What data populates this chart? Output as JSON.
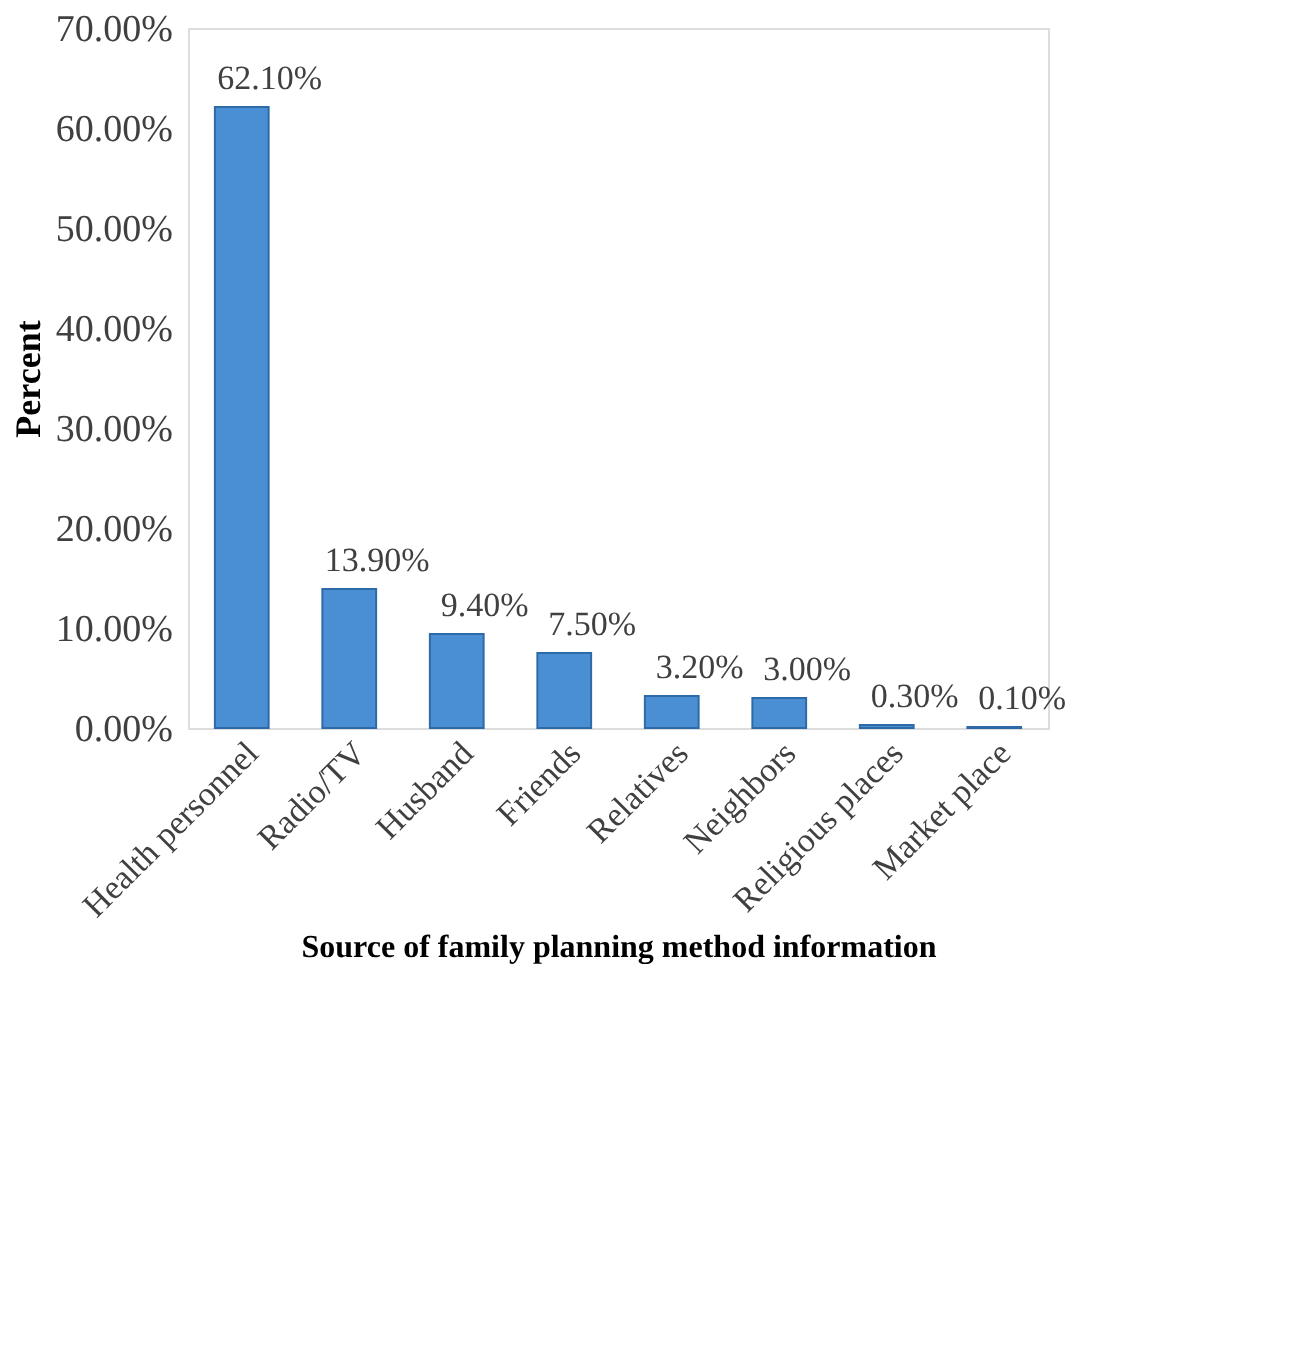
{
  "chart_data": {
    "type": "bar",
    "xlabel": "Source of family planning method information",
    "ylabel": "Percent",
    "categories": [
      "Health personnel",
      "Radio/TV",
      "Husband",
      "Friends",
      "Relatives",
      "Neighbors",
      "Religious places",
      "Market place"
    ],
    "values": [
      62.1,
      13.9,
      9.4,
      7.5,
      3.2,
      3.0,
      0.3,
      0.1
    ],
    "value_labels": [
      "62.10%",
      "13.90%",
      "9.40%",
      "7.50%",
      "3.20%",
      "3.00%",
      "0.30%",
      "0.10%"
    ],
    "color": "#4a8fd4",
    "ylim": [
      0,
      70
    ],
    "yticks": [
      {
        "value": 0,
        "label": "0.00%"
      },
      {
        "value": 10,
        "label": "10.00%"
      },
      {
        "value": 20,
        "label": "20.00%"
      },
      {
        "value": 30,
        "label": "30.00%"
      },
      {
        "value": 40,
        "label": "40.00%"
      },
      {
        "value": 50,
        "label": "50.00%"
      },
      {
        "value": 60,
        "label": "60.00%"
      },
      {
        "value": 70,
        "label": "70.00%"
      }
    ],
    "grid": false
  }
}
